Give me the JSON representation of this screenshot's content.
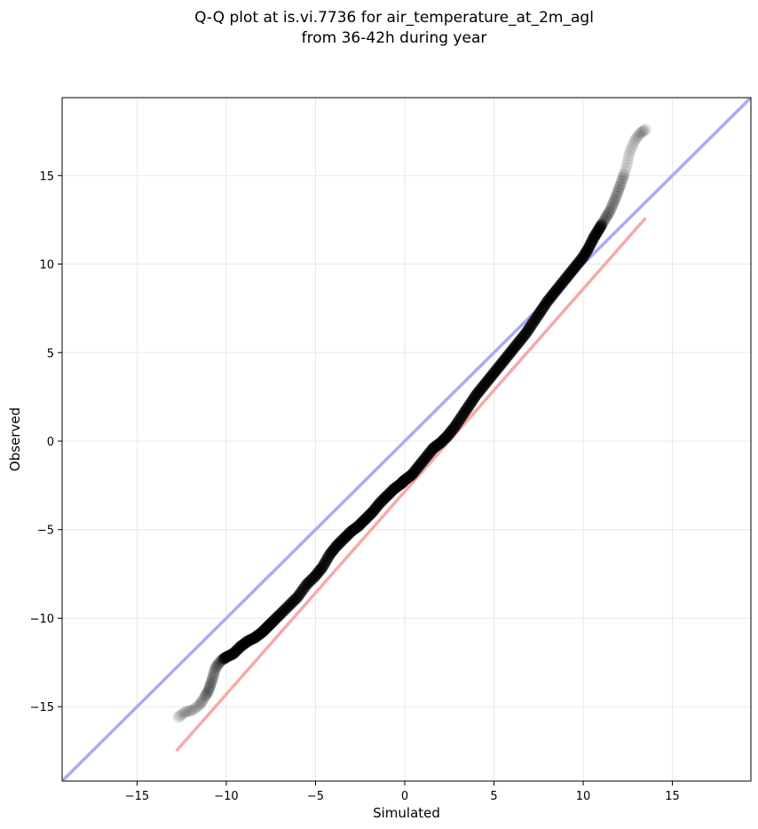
{
  "chart_data": {
    "type": "scatter",
    "title_lines": [
      "Q-Q plot at is.vi.7736 for air_temperature_at_2m_agl",
      "from 36-42h during year"
    ],
    "xlabel": "Simulated",
    "ylabel": "Observed",
    "xlim": [
      -19.2,
      19.4
    ],
    "ylim": [
      -19.2,
      19.4
    ],
    "xticks": [
      -15,
      -10,
      -5,
      0,
      5,
      10,
      15
    ],
    "yticks": [
      -15,
      -10,
      -5,
      0,
      5,
      10,
      15
    ],
    "tick_labels": [
      "−15",
      "−10",
      "−5",
      "0",
      "5",
      "10",
      "15"
    ],
    "grid": true,
    "reference_lines": [
      {
        "kind": "identity",
        "color": "#aaaaf5",
        "x": [
          -19.2,
          19.4
        ],
        "y": [
          -19.2,
          19.4
        ]
      },
      {
        "kind": "fit",
        "color": "#f5aaaa",
        "x": [
          -12.8,
          13.5
        ],
        "y": [
          -17.5,
          12.6
        ]
      }
    ],
    "series": [
      {
        "marker_color": "#000000",
        "x": [
          -12.7,
          -12.3,
          -11.9,
          -11.5,
          -11.3,
          -11.0,
          -10.8,
          -10.6,
          -10.3,
          -10.0,
          -9.6,
          -9.2,
          -8.8,
          -8.4,
          -8.0,
          -7.7,
          -7.4,
          -7.0,
          -6.5,
          -6.0,
          -5.5,
          -5.0,
          -4.6,
          -4.2,
          -3.8,
          -3.4,
          -3.0,
          -2.6,
          -2.2,
          -1.8,
          -1.4,
          -1.0,
          -0.6,
          -0.2,
          0.0,
          0.4,
          0.8,
          1.2,
          1.6,
          2.0,
          2.4,
          2.8,
          3.2,
          3.6,
          4.0,
          4.4,
          4.8,
          5.2,
          5.6,
          6.0,
          6.4,
          6.8,
          7.2,
          7.6,
          8.0,
          8.4,
          8.8,
          9.2,
          9.6,
          10.0,
          10.3,
          10.6,
          10.9,
          11.2,
          11.5,
          11.8,
          12.1,
          12.4,
          12.6,
          12.9,
          13.2,
          13.5
        ],
        "y": [
          -15.6,
          -15.3,
          -15.2,
          -14.9,
          -14.6,
          -14.1,
          -13.5,
          -12.8,
          -12.4,
          -12.2,
          -12.0,
          -11.6,
          -11.3,
          -11.1,
          -10.8,
          -10.5,
          -10.2,
          -9.8,
          -9.3,
          -8.8,
          -8.1,
          -7.6,
          -7.1,
          -6.4,
          -5.9,
          -5.5,
          -5.1,
          -4.8,
          -4.4,
          -4.0,
          -3.5,
          -3.1,
          -2.7,
          -2.4,
          -2.2,
          -1.9,
          -1.4,
          -0.9,
          -0.4,
          -0.1,
          0.3,
          0.8,
          1.4,
          2.0,
          2.6,
          3.1,
          3.6,
          4.1,
          4.6,
          5.1,
          5.6,
          6.1,
          6.7,
          7.3,
          7.9,
          8.4,
          8.9,
          9.4,
          9.9,
          10.4,
          10.9,
          11.5,
          12.0,
          12.5,
          13.0,
          13.7,
          14.5,
          15.4,
          16.3,
          17.0,
          17.4,
          17.6
        ]
      }
    ]
  }
}
